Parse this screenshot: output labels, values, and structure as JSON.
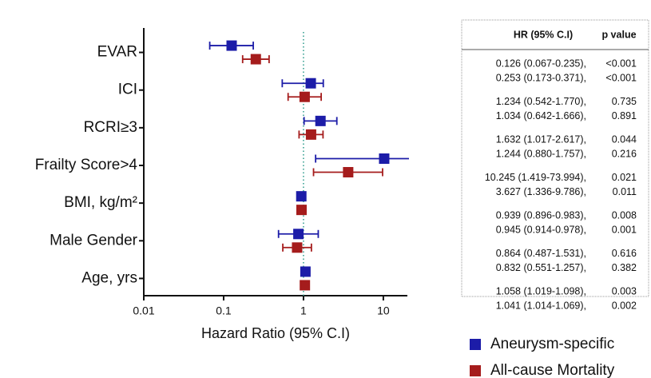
{
  "chart_data": {
    "type": "forest",
    "categories": [
      "EVAR",
      "ICI",
      "RCRI≥3",
      "Frailty Score>4",
      "BMI, kg/m²",
      "Male Gender",
      "Age, yrs"
    ],
    "xlabel": "Hazard Ratio (95% C.I)",
    "xscale": "log",
    "xlim": [
      0.01,
      20
    ],
    "xticks": [
      0.01,
      0.1,
      1,
      10
    ],
    "reference_x": 1,
    "series": [
      {
        "name": "Aneurysm-specific",
        "color": "#1c1ca8",
        "values": [
          0.126,
          1.234,
          1.632,
          10.245,
          0.939,
          0.864,
          1.058
        ],
        "lower": [
          0.067,
          0.542,
          1.017,
          1.419,
          0.896,
          0.487,
          1.019
        ],
        "upper": [
          0.235,
          1.77,
          2.617,
          73.994,
          0.983,
          1.531,
          1.098
        ]
      },
      {
        "name": "All-cause Mortality",
        "color": "#a51c1c",
        "values": [
          0.253,
          1.034,
          1.244,
          3.627,
          0.945,
          0.832,
          1.041
        ],
        "lower": [
          0.173,
          0.642,
          0.88,
          1.336,
          0.914,
          0.551,
          1.014
        ],
        "upper": [
          0.371,
          1.666,
          1.757,
          9.786,
          0.978,
          1.257,
          1.069
        ]
      }
    ],
    "legend": "bottom-right"
  },
  "table": {
    "headers": [
      "HR (95% C.I)",
      "p value"
    ],
    "rows": [
      [
        "0.126 (0.067-0.235),",
        "<0.001"
      ],
      [
        "0.253 (0.173-0.371),",
        "<0.001"
      ],
      [
        "1.234 (0.542-1.770),",
        "0.735"
      ],
      [
        "1.034 (0.642-1.666),",
        "0.891"
      ],
      [
        "1.632 (1.017-2.617),",
        "0.044"
      ],
      [
        "1.244 (0.880-1.757),",
        "0.216"
      ],
      [
        "10.245 (1.419-73.994),",
        "0.021"
      ],
      [
        "3.627 (1.336-9.786),",
        "0.011"
      ],
      [
        "0.939 (0.896-0.983),",
        "0.008"
      ],
      [
        "0.945 (0.914-0.978),",
        "0.001"
      ],
      [
        "0.864 (0.487-1.531),",
        "0.616"
      ],
      [
        "0.832 (0.551-1.257),",
        "0.382"
      ],
      [
        "1.058 (1.019-1.098),",
        "0.003"
      ],
      [
        "1.041 (1.014-1.069),",
        "0.002"
      ]
    ]
  }
}
